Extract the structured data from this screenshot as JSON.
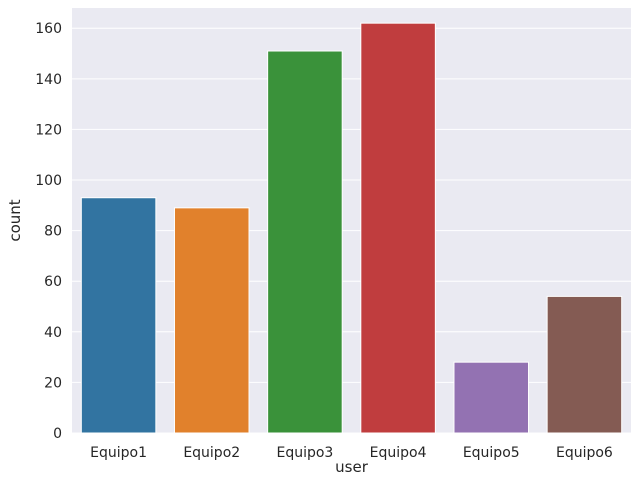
{
  "chart_data": {
    "type": "bar",
    "categories": [
      "Equipo1",
      "Equipo2",
      "Equipo3",
      "Equipo4",
      "Equipo5",
      "Equipo6"
    ],
    "values": [
      93,
      89,
      151,
      162,
      28,
      54
    ],
    "colors": [
      "#3274a1",
      "#e1812c",
      "#3a923a",
      "#c03d3e",
      "#9372b2",
      "#845b53"
    ],
    "xlabel": "user",
    "ylabel": "count",
    "ylim": [
      0,
      168
    ],
    "yticks": [
      0,
      20,
      40,
      60,
      80,
      100,
      120,
      140,
      160
    ],
    "grid": true,
    "background": "#eaeaf2",
    "grid_color": "#ffffff"
  }
}
